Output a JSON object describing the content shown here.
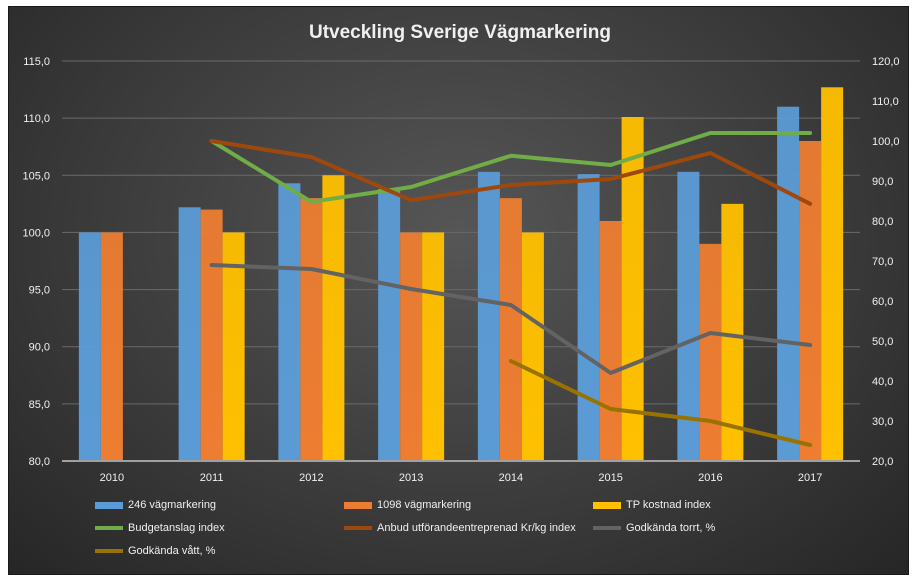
{
  "chart_data": {
    "type": "bar",
    "title": "Utveckling Sverige Vägmarkering",
    "categories": [
      "2010",
      "2011",
      "2012",
      "2013",
      "2014",
      "2015",
      "2016",
      "2017"
    ],
    "y_left": {
      "min": 80,
      "max": 115,
      "step": 5,
      "tick_labels": [
        "80,0",
        "85,0",
        "90,0",
        "95,0",
        "100,0",
        "105,0",
        "110,0",
        "115,0"
      ]
    },
    "y_right": {
      "min": 20,
      "max": 120,
      "step": 10,
      "tick_labels": [
        "20,0",
        "30,0",
        "40,0",
        "50,0",
        "60,0",
        "70,0",
        "80,0",
        "90,0",
        "100,0",
        "110,0",
        "120,0"
      ]
    },
    "bar_series": [
      {
        "name": "246 vägmarkering",
        "color": "#5b9bd5",
        "axis": "left",
        "values": [
          100.0,
          102.2,
          104.3,
          103.8,
          105.3,
          105.1,
          105.3,
          111.0
        ]
      },
      {
        "name": "1098 vägmarkering",
        "color": "#ed7d31",
        "axis": "left",
        "values": [
          100.0,
          102.0,
          103.0,
          100.0,
          103.0,
          101.0,
          99.0,
          108.0
        ]
      },
      {
        "name": "TP kostnad index",
        "color": "#ffc000",
        "axis": "left",
        "values": [
          null,
          100.0,
          105.0,
          100.0,
          100.0,
          110.1,
          102.5,
          112.7
        ]
      }
    ],
    "line_series": [
      {
        "name": "Budgetanslag index",
        "color": "#70ad47",
        "axis": "right",
        "values": [
          null,
          100.0,
          84.8,
          88.5,
          96.3,
          94.0,
          102.0,
          102.0
        ]
      },
      {
        "name": "Anbud utförandeentreprenad Kr/kg index",
        "color": "#9e480e",
        "axis": "right",
        "values": [
          null,
          100.0,
          96.0,
          85.2,
          89.0,
          90.5,
          97.0,
          84.3
        ]
      },
      {
        "name": "Godkända torrt, %",
        "color": "#636363",
        "axis": "right",
        "values": [
          null,
          69.0,
          68.0,
          63.0,
          59.0,
          42.0,
          52.0,
          49.0
        ]
      },
      {
        "name": "Godkända vått, %",
        "color": "#997300",
        "axis": "right",
        "values": [
          null,
          null,
          null,
          null,
          45.0,
          33.0,
          30.0,
          24.0
        ]
      }
    ],
    "grid": true,
    "legend_position": "bottom"
  },
  "colors": {
    "background": "#3c3c3c",
    "gridline": "#6a6a6a",
    "text": "#f0f0f0"
  }
}
